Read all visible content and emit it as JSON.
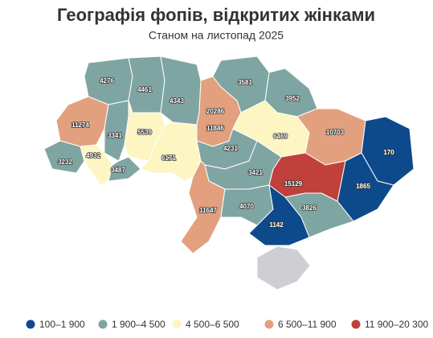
{
  "chart_data": {
    "type": "map",
    "title": "Географія фопів, відкритих жінками",
    "subtitle": "Станом на листопад 2025",
    "values": [
      4276,
      4461,
      4343,
      20286,
      11846,
      3581,
      3952,
      11274,
      3341,
      5539,
      3232,
      4932,
      3487,
      6171,
      4231,
      6469,
      10703,
      170,
      1865,
      15129,
      3421,
      11647,
      4070,
      3826,
      1142
    ],
    "legend": [
      {
        "from": 100,
        "to": 1900,
        "label": "100–1 900",
        "color": "#0d4a8b"
      },
      {
        "from": 1900,
        "to": 4500,
        "label": "1 900–4 500",
        "color": "#7fa5a2"
      },
      {
        "from": 4500,
        "to": 6500,
        "label": "4 500–6 500",
        "color": "#fdf5c2"
      },
      {
        "from": 6500,
        "to": 11900,
        "label": "6 500–11 900",
        "color": "#e3a07e"
      },
      {
        "from": 11900,
        "to": 20300,
        "label": "11 900–20 300",
        "color": "#c0403b"
      }
    ]
  }
}
